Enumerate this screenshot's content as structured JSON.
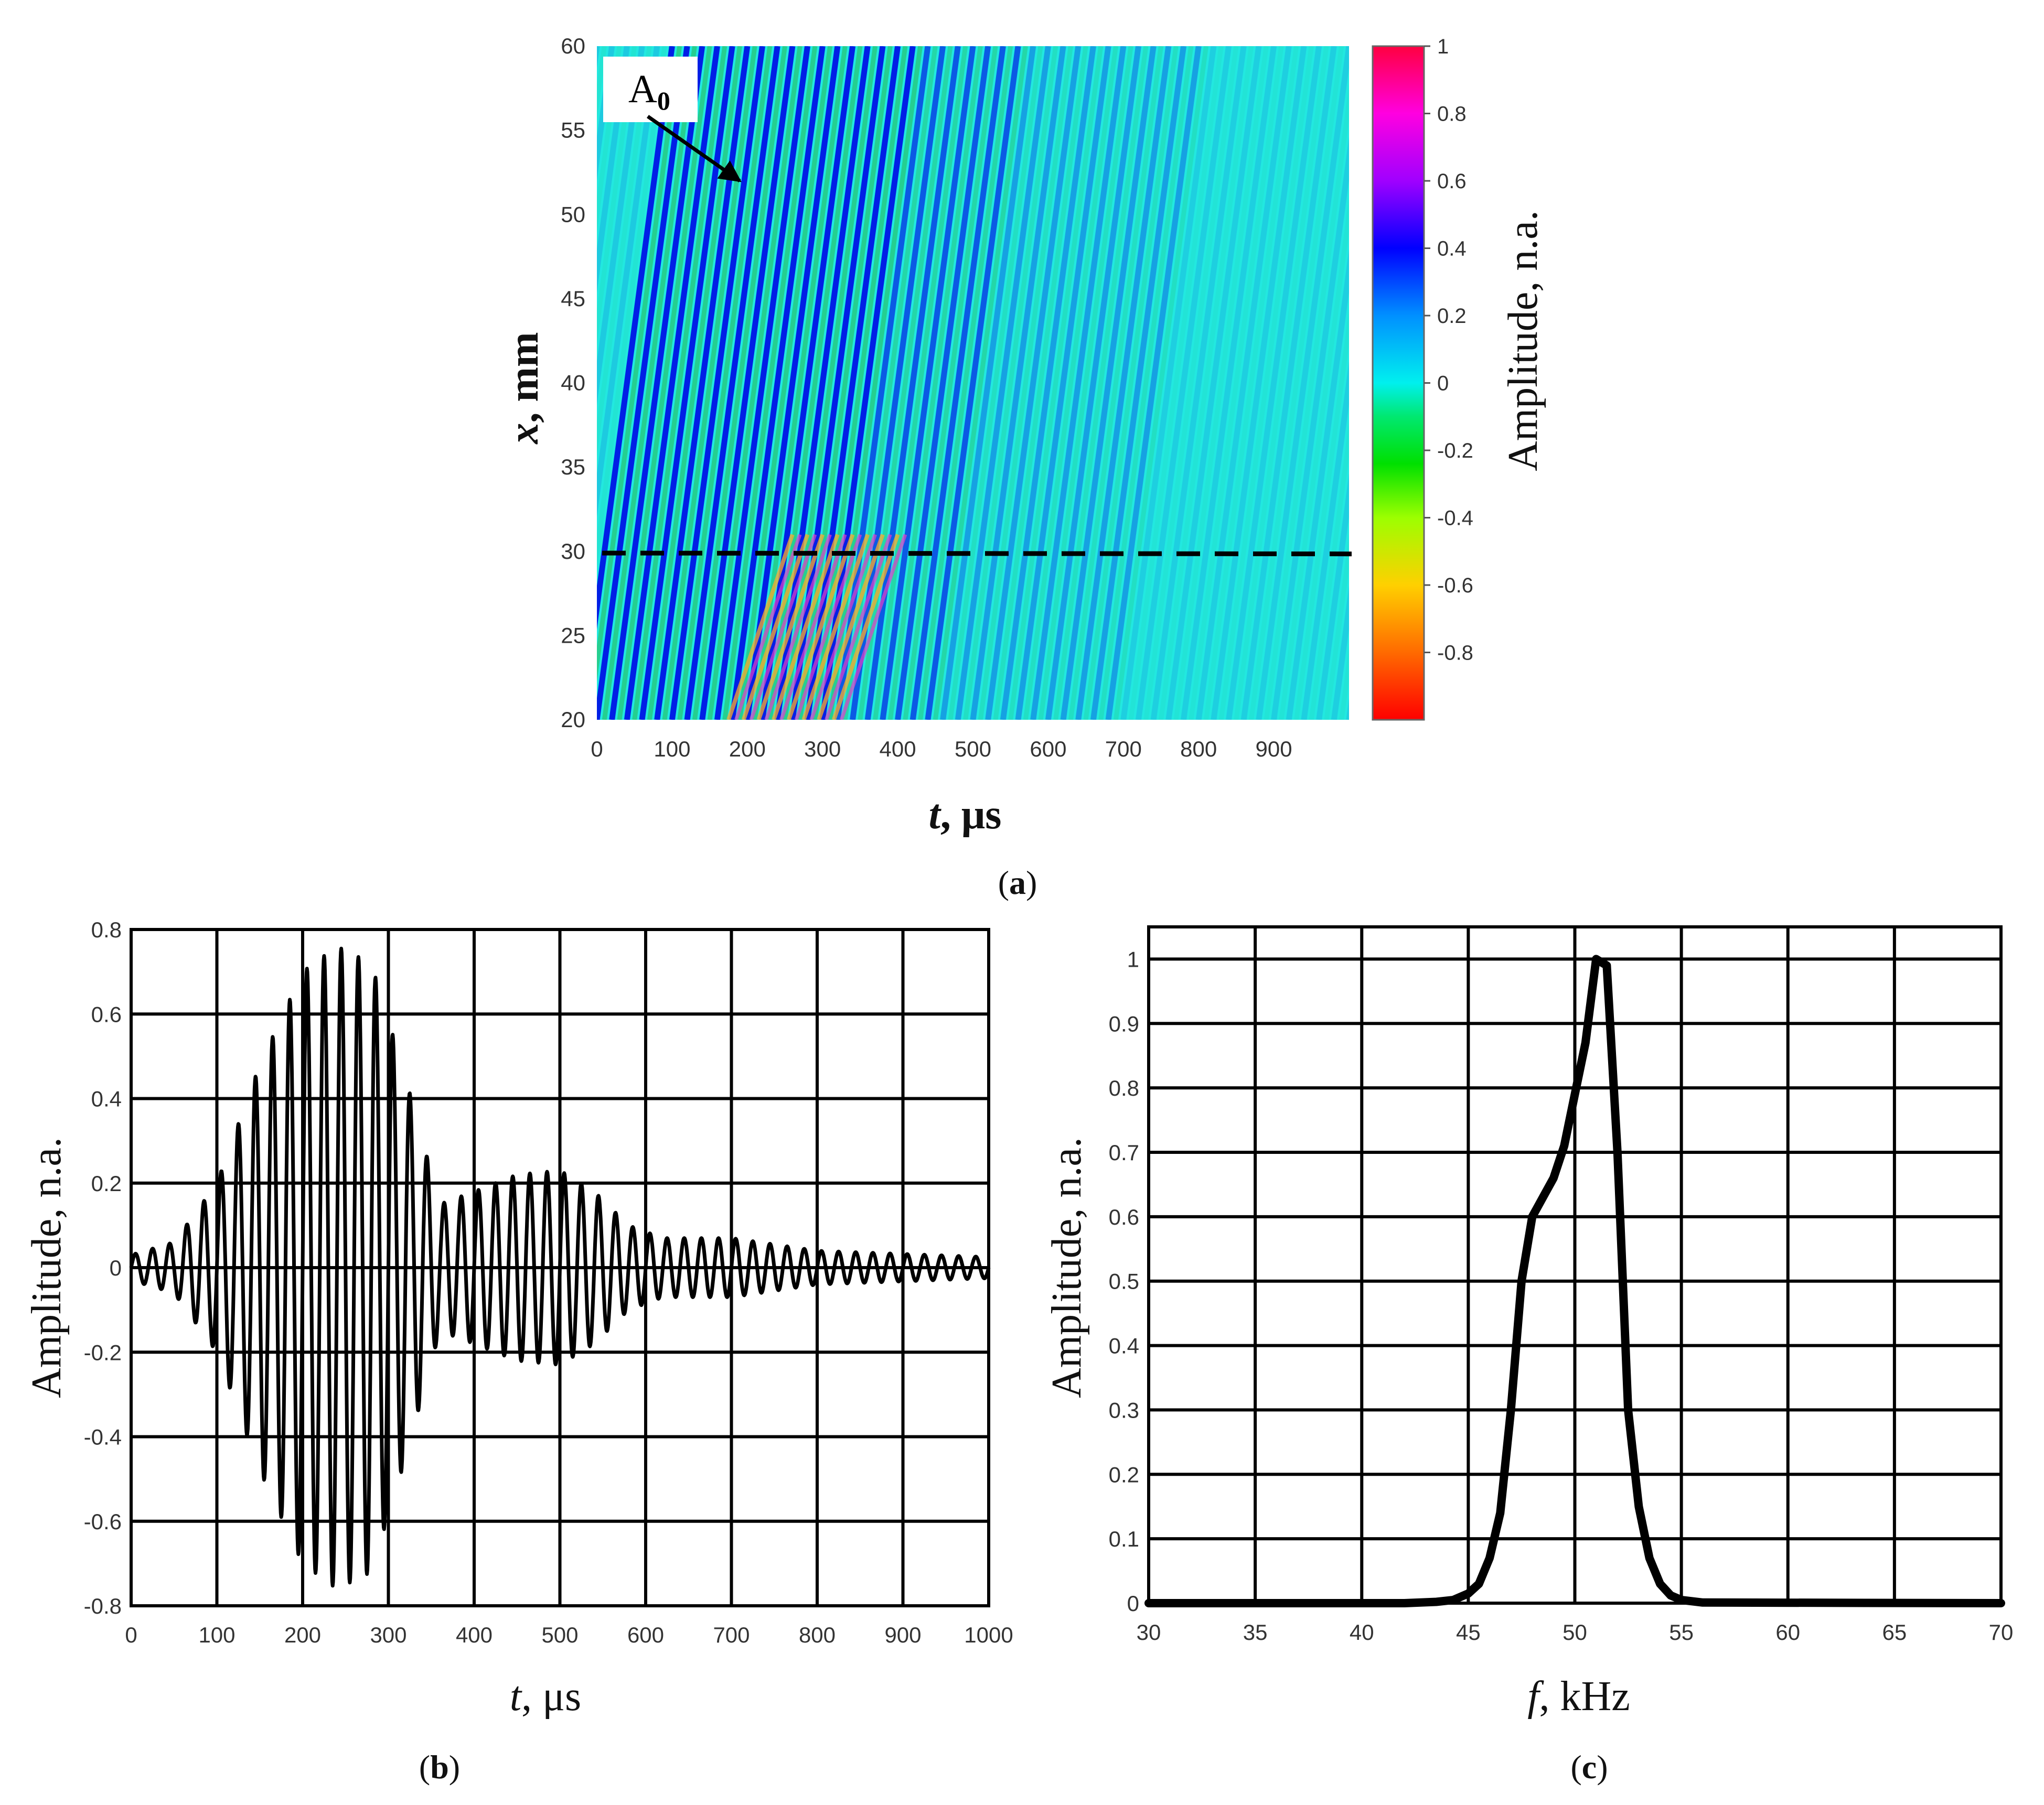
{
  "colors": {
    "heatmap_bg": "#22e8e0",
    "line": "#000000"
  },
  "chart_data": [
    {
      "id": "a",
      "type": "heatmap",
      "caption_letter": "a",
      "xlabel": {
        "italic": "t",
        "rest": ", μs"
      },
      "ylabel": {
        "italic": "x",
        "rest": ", mm"
      },
      "xlim": [
        0,
        1000
      ],
      "ylim": [
        20,
        60
      ],
      "xticks": [
        "0",
        "100",
        "200",
        "300",
        "400",
        "500",
        "600",
        "700",
        "800",
        "900"
      ],
      "yticks": [
        "20",
        "25",
        "30",
        "35",
        "40",
        "45",
        "50",
        "55",
        "60"
      ],
      "colorbar": {
        "label": "Amplitude, n.a.",
        "range": [
          -1,
          1
        ],
        "ticks": [
          "1",
          "0.8",
          "0.6",
          "0.4",
          "0.2",
          "0",
          "-0.2",
          "-0.4",
          "-0.6",
          "-0.8"
        ]
      },
      "annotation": {
        "text": "A",
        "subscript": "0",
        "arrow_tip": [
          190,
          52
        ]
      },
      "dashed_line_x_mm": 29.9,
      "wave_packet": {
        "t_start_at_x20": 80,
        "t_center_at_x20": 220,
        "t_start_at_x60": 140,
        "t_end_at_x60": 440,
        "period_us": 20
      }
    },
    {
      "id": "b",
      "type": "line",
      "caption_letter": "b",
      "xlabel": {
        "italic": "t",
        "rest": ", μs"
      },
      "ylabel": "Amplitude, n.a.",
      "xlim": [
        0,
        1000
      ],
      "ylim": [
        -0.8,
        0.8
      ],
      "xticks": [
        "0",
        "100",
        "200",
        "300",
        "400",
        "500",
        "600",
        "700",
        "800",
        "900",
        "1000"
      ],
      "yticks": [
        "-0.8",
        "-0.6",
        "-0.4",
        "-0.2",
        "0",
        "0.2",
        "0.4",
        "0.6",
        "0.8"
      ],
      "grid": true,
      "signal": {
        "frequency_khz": 50,
        "envelope_points": [
          [
            0,
            0.03
          ],
          [
            50,
            0.06
          ],
          [
            100,
            0.2
          ],
          [
            150,
            0.48
          ],
          [
            200,
            0.7
          ],
          [
            240,
            0.76
          ],
          [
            280,
            0.72
          ],
          [
            320,
            0.45
          ],
          [
            360,
            0.15
          ],
          [
            400,
            0.18
          ],
          [
            450,
            0.22
          ],
          [
            500,
            0.23
          ],
          [
            540,
            0.18
          ],
          [
            580,
            0.1
          ],
          [
            620,
            0.07
          ],
          [
            700,
            0.07
          ],
          [
            800,
            0.04
          ],
          [
            1000,
            0.025
          ]
        ]
      }
    },
    {
      "id": "c",
      "type": "line",
      "caption_letter": "c",
      "xlabel": {
        "italic": "f",
        "rest": ", kHz"
      },
      "ylabel": "Amplitude, n.a.",
      "xlim": [
        30,
        70
      ],
      "ylim": [
        0,
        1.0
      ],
      "xticks": [
        "30",
        "35",
        "40",
        "45",
        "50",
        "55",
        "60",
        "65",
        "70"
      ],
      "yticks": [
        "0",
        "0.1",
        "0.2",
        "0.3",
        "0.4",
        "0.5",
        "0.6",
        "0.7",
        "0.8",
        "0.9",
        "1"
      ],
      "grid": true,
      "series": [
        {
          "x": [
            30,
            42,
            43.5,
            44.3,
            45,
            45.5,
            46,
            46.5,
            47,
            47.5,
            48,
            49,
            49.5,
            50,
            50.5,
            51,
            51.5,
            52,
            52.5,
            53,
            53.5,
            54,
            54.5,
            55,
            56,
            70
          ],
          "y": [
            0,
            0,
            0.002,
            0.005,
            0.015,
            0.03,
            0.07,
            0.14,
            0.3,
            0.5,
            0.6,
            0.66,
            0.71,
            0.79,
            0.87,
            1.0,
            0.99,
            0.7,
            0.3,
            0.15,
            0.07,
            0.03,
            0.012,
            0.005,
            0.001,
            0
          ]
        }
      ]
    }
  ]
}
